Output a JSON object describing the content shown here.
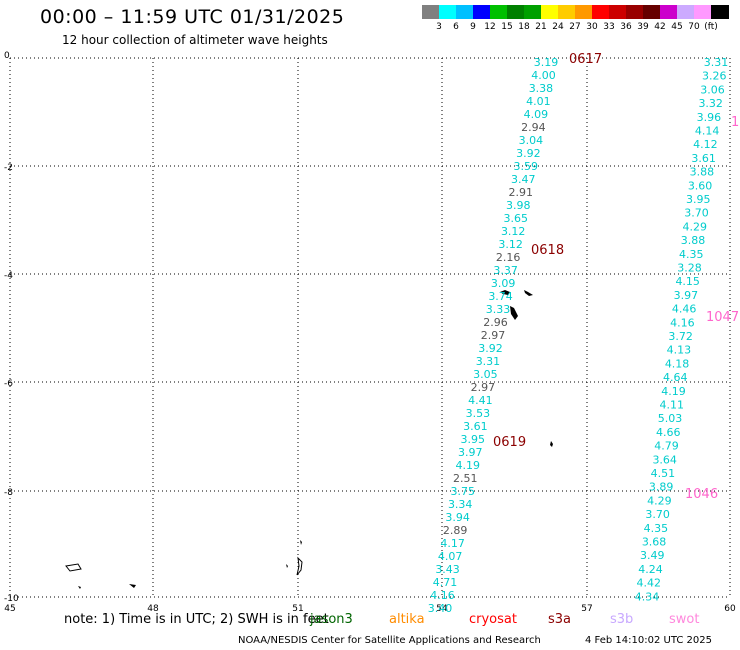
{
  "header": {
    "title": "00:00 – 11:59 UTC 01/31/2025",
    "subtitle": "12 hour collection of altimeter wave heights"
  },
  "colorbar": {
    "labels": [
      "3",
      "6",
      "9",
      "12",
      "15",
      "18",
      "21",
      "24",
      "27",
      "30",
      "33",
      "36",
      "39",
      "42",
      "45",
      "70"
    ],
    "unit": "(ft)",
    "colors": [
      "#808080",
      "#00ffff",
      "#00c0ff",
      "#0000ff",
      "#00c000",
      "#008000",
      "#00a000",
      "#ffff00",
      "#ffcc00",
      "#ff9900",
      "#ff0000",
      "#cc0000",
      "#990000",
      "#660000",
      "#cc00cc",
      "#ccaaff",
      "#ff99ff",
      "#000000"
    ]
  },
  "axes": {
    "y_ticks": [
      "0",
      "-2",
      "-4",
      "-6",
      "-8",
      "-10"
    ],
    "x_ticks": [
      "45",
      "48",
      "51",
      "54",
      "57",
      "60"
    ]
  },
  "tracks": [
    {
      "name": "track-a",
      "values": [
        {
          "v": "3.19",
          "c": "#00cccc"
        },
        {
          "v": "4.00",
          "c": "#00cccc"
        },
        {
          "v": "3.38",
          "c": "#00cccc"
        },
        {
          "v": "4.01",
          "c": "#00cccc"
        },
        {
          "v": "4.09",
          "c": "#00cccc"
        },
        {
          "v": "2.94",
          "c": "#555555"
        },
        {
          "v": "3.04",
          "c": "#00cccc"
        },
        {
          "v": "3.92",
          "c": "#00cccc"
        },
        {
          "v": "3.59",
          "c": "#00cccc"
        },
        {
          "v": "3.47",
          "c": "#00cccc"
        },
        {
          "v": "2.91",
          "c": "#555555"
        },
        {
          "v": "3.98",
          "c": "#00cccc"
        },
        {
          "v": "3.65",
          "c": "#00cccc"
        },
        {
          "v": "3.12",
          "c": "#00cccc"
        },
        {
          "v": "3.12",
          "c": "#00cccc"
        },
        {
          "v": "2.16",
          "c": "#555555"
        },
        {
          "v": "3.37",
          "c": "#00cccc"
        },
        {
          "v": "3.09",
          "c": "#00cccc"
        },
        {
          "v": "3.74",
          "c": "#00cccc"
        },
        {
          "v": "3.33",
          "c": "#00cccc"
        },
        {
          "v": "2.96",
          "c": "#555555"
        },
        {
          "v": "2.97",
          "c": "#555555"
        },
        {
          "v": "3.92",
          "c": "#00cccc"
        },
        {
          "v": "3.31",
          "c": "#00cccc"
        },
        {
          "v": "3.05",
          "c": "#00cccc"
        },
        {
          "v": "2.97",
          "c": "#555555"
        },
        {
          "v": "4.41",
          "c": "#00cccc"
        },
        {
          "v": "3.53",
          "c": "#00cccc"
        },
        {
          "v": "3.61",
          "c": "#00cccc"
        },
        {
          "v": "3.95",
          "c": "#00cccc"
        },
        {
          "v": "3.97",
          "c": "#00cccc"
        },
        {
          "v": "4.19",
          "c": "#00cccc"
        },
        {
          "v": "2.51",
          "c": "#555555"
        },
        {
          "v": "3.75",
          "c": "#00cccc"
        },
        {
          "v": "3.34",
          "c": "#00cccc"
        },
        {
          "v": "3.94",
          "c": "#00cccc"
        },
        {
          "v": "2.89",
          "c": "#555555"
        },
        {
          "v": "4.17",
          "c": "#00cccc"
        },
        {
          "v": "4.07",
          "c": "#00cccc"
        },
        {
          "v": "3.43",
          "c": "#00cccc"
        },
        {
          "v": "4.71",
          "c": "#00cccc"
        },
        {
          "v": "4.16",
          "c": "#00cccc"
        },
        {
          "v": "3.40",
          "c": "#00cccc"
        }
      ]
    },
    {
      "name": "track-b",
      "values": [
        {
          "v": "3.31",
          "c": "#00cccc"
        },
        {
          "v": "3.26",
          "c": "#00cccc"
        },
        {
          "v": "3.06",
          "c": "#00cccc"
        },
        {
          "v": "3.32",
          "c": "#00cccc"
        },
        {
          "v": "3.96",
          "c": "#00cccc"
        },
        {
          "v": "4.14",
          "c": "#00cccc"
        },
        {
          "v": "4.12",
          "c": "#00cccc"
        },
        {
          "v": "3.61",
          "c": "#00cccc"
        },
        {
          "v": "3.88",
          "c": "#00cccc"
        },
        {
          "v": "3.60",
          "c": "#00cccc"
        },
        {
          "v": "3.95",
          "c": "#00cccc"
        },
        {
          "v": "3.70",
          "c": "#00cccc"
        },
        {
          "v": "4.29",
          "c": "#00cccc"
        },
        {
          "v": "3.88",
          "c": "#00cccc"
        },
        {
          "v": "4.35",
          "c": "#00cccc"
        },
        {
          "v": "3.28",
          "c": "#00cccc"
        },
        {
          "v": "4.15",
          "c": "#00cccc"
        },
        {
          "v": "3.97",
          "c": "#00cccc"
        },
        {
          "v": "4.46",
          "c": "#00cccc"
        },
        {
          "v": "4.16",
          "c": "#00cccc"
        },
        {
          "v": "3.72",
          "c": "#00cccc"
        },
        {
          "v": "4.13",
          "c": "#00cccc"
        },
        {
          "v": "4.18",
          "c": "#00cccc"
        },
        {
          "v": "4.64",
          "c": "#00cccc"
        },
        {
          "v": "4.19",
          "c": "#00cccc"
        },
        {
          "v": "4.11",
          "c": "#00cccc"
        },
        {
          "v": "5.03",
          "c": "#00cccc"
        },
        {
          "v": "4.66",
          "c": "#00cccc"
        },
        {
          "v": "4.79",
          "c": "#00cccc"
        },
        {
          "v": "3.64",
          "c": "#00cccc"
        },
        {
          "v": "4.51",
          "c": "#00cccc"
        },
        {
          "v": "3.89",
          "c": "#00cccc"
        },
        {
          "v": "4.29",
          "c": "#00cccc"
        },
        {
          "v": "3.70",
          "c": "#00cccc"
        },
        {
          "v": "4.35",
          "c": "#00cccc"
        },
        {
          "v": "3.68",
          "c": "#00cccc"
        },
        {
          "v": "3.49",
          "c": "#00cccc"
        },
        {
          "v": "4.24",
          "c": "#00cccc"
        },
        {
          "v": "4.42",
          "c": "#00cccc"
        },
        {
          "v": "4.34",
          "c": "#00cccc"
        }
      ]
    }
  ],
  "pass_times": [
    {
      "label": "0617",
      "color": "#8b0000"
    },
    {
      "label": "0618",
      "color": "#8b0000"
    },
    {
      "label": "0619",
      "color": "#8b0000"
    },
    {
      "label": "1047",
      "color": "#ff66cc"
    },
    {
      "label": "1046",
      "color": "#ff66cc"
    },
    {
      "label": "1",
      "color": "#ff66cc"
    }
  ],
  "note": "note:  1) Time is in UTC;  2) SWH is in feet",
  "satellites": [
    {
      "name": "jason3",
      "color": "#006400"
    },
    {
      "name": "altika",
      "color": "#ff8c00"
    },
    {
      "name": "cryosat",
      "color": "#ff0000"
    },
    {
      "name": "s3a",
      "color": "#8b0000"
    },
    {
      "name": "s3b",
      "color": "#c8a8ff"
    },
    {
      "name": "swot",
      "color": "#ff88dd"
    }
  ],
  "footer": {
    "org": "NOAA/NESDIS Center for Satellite Applications and Research",
    "generated": "4 Feb 14:10:02 UTC 2025"
  }
}
